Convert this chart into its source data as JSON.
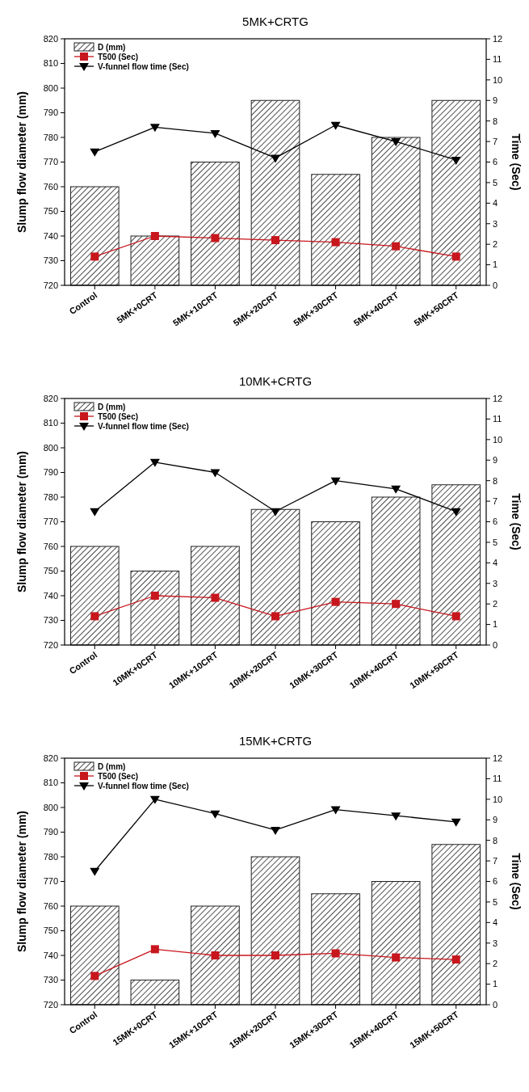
{
  "chart_data": [
    {
      "type": "bar",
      "title": "5MK+CRTG",
      "categories": [
        "Control",
        "5MK+0CRT",
        "5MK+10CRT",
        "5MK+20CRT",
        "5MK+30CRT",
        "5MK+40CRT",
        "5MK+50CRT"
      ],
      "ylabel": "Slump flow diameter (mm)",
      "y2label": "Time (Sec)",
      "ylim": [
        720,
        820
      ],
      "yticks": [
        720,
        730,
        740,
        750,
        760,
        770,
        780,
        790,
        800,
        810,
        820
      ],
      "y2lim": [
        0,
        12
      ],
      "y2ticks": [
        0,
        1,
        2,
        3,
        4,
        5,
        6,
        7,
        8,
        9,
        10,
        11,
        12
      ],
      "legend": "top left",
      "series": [
        {
          "name": "D (mm)",
          "color": "#222222",
          "values": [
            760,
            740,
            770,
            795,
            765,
            780,
            795
          ]
        },
        {
          "name": "T500 (Sec)",
          "type": "line",
          "axis": "y2",
          "color": "#c8161d",
          "marker": "square",
          "values": [
            1.4,
            2.4,
            2.3,
            2.2,
            2.1,
            1.9,
            1.4
          ]
        },
        {
          "name": "V-funnel flow time (Sec)",
          "type": "line",
          "axis": "y2",
          "color": "#000000",
          "marker": "triangle",
          "values": [
            6.5,
            7.7,
            7.4,
            6.2,
            7.8,
            7.0,
            6.1
          ]
        }
      ]
    },
    {
      "type": "bar",
      "title": "10MK+CRTG",
      "categories": [
        "Control",
        "10MK+0CRT",
        "10MK+10CRT",
        "10MK+20CRT",
        "10MK+30CRT",
        "10MK+40CRT",
        "10MK+50CRT"
      ],
      "ylabel": "Slump flow diameter (mm)",
      "y2label": "Time (Sec)",
      "ylim": [
        720,
        820
      ],
      "yticks": [
        720,
        730,
        740,
        750,
        760,
        770,
        780,
        790,
        800,
        810,
        820
      ],
      "y2lim": [
        0,
        12
      ],
      "y2ticks": [
        0,
        1,
        2,
        3,
        4,
        5,
        6,
        7,
        8,
        9,
        10,
        11,
        12
      ],
      "legend": "top left",
      "series": [
        {
          "name": "D (mm)",
          "color": "#222222",
          "values": [
            760,
            750,
            760,
            775,
            770,
            780,
            785
          ]
        },
        {
          "name": "T500 (Sec)",
          "type": "line",
          "axis": "y2",
          "color": "#c8161d",
          "marker": "square",
          "values": [
            1.4,
            2.4,
            2.3,
            1.4,
            2.1,
            2.0,
            1.4
          ]
        },
        {
          "name": "V-funnel flow time (Sec)",
          "type": "line",
          "axis": "y2",
          "color": "#000000",
          "marker": "triangle",
          "values": [
            6.5,
            8.9,
            8.4,
            6.5,
            8.0,
            7.6,
            6.5
          ]
        }
      ]
    },
    {
      "type": "bar",
      "title": "15MK+CRTG",
      "categories": [
        "Control",
        "15MK+0CRT",
        "15MK+10CRT",
        "15MK+20CRT",
        "15MK+30CRT",
        "15MK+40CRT",
        "15MK+50CRT"
      ],
      "ylabel": "Slump flow diameter (mm)",
      "y2label": "Time (Sec)",
      "ylim": [
        720,
        820
      ],
      "yticks": [
        720,
        730,
        740,
        750,
        760,
        770,
        780,
        790,
        800,
        810,
        820
      ],
      "y2lim": [
        0,
        12
      ],
      "y2ticks": [
        0,
        1,
        2,
        3,
        4,
        5,
        6,
        7,
        8,
        9,
        10,
        11,
        12
      ],
      "legend": "top left",
      "series": [
        {
          "name": "D (mm)",
          "color": "#222222",
          "values": [
            760,
            730,
            760,
            780,
            765,
            770,
            785
          ]
        },
        {
          "name": "T500 (Sec)",
          "type": "line",
          "axis": "y2",
          "color": "#c8161d",
          "marker": "square",
          "values": [
            1.4,
            2.7,
            2.4,
            2.4,
            2.5,
            2.3,
            2.2
          ]
        },
        {
          "name": "V-funnel flow time (Sec)",
          "type": "line",
          "axis": "y2",
          "color": "#000000",
          "marker": "triangle",
          "values": [
            6.5,
            10.0,
            9.3,
            8.5,
            9.5,
            9.2,
            8.9
          ]
        }
      ]
    }
  ]
}
